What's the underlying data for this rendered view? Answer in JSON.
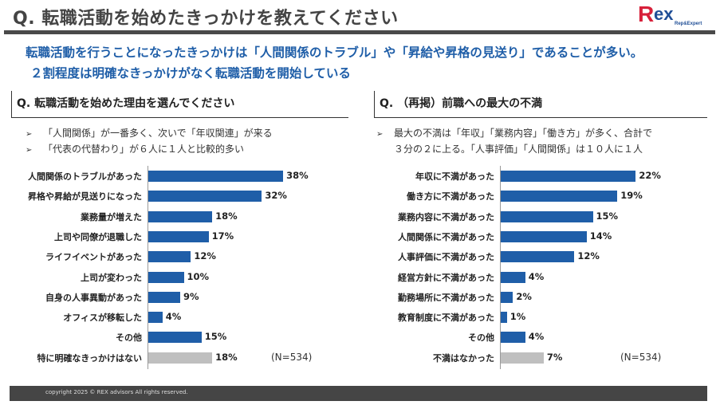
{
  "header": {
    "title": "Q. 転職活動を始めたきっかけを教えてください",
    "logo": "Rex Rep&Expert"
  },
  "lead": [
    "転職活動を行うことになったきっかけは「人間関係のトラブル」や「昇給や昇格の見送り」であることが多い。",
    "２割程度は明確なきっかけがなく転職活動を開始している"
  ],
  "left": {
    "heading": "Q. 転職活動を始めた理由を選んでください",
    "bullets": [
      "「人間関係」が一番多く、次いで「年収関連」が来る",
      "「代表の代替わり」が６人に１人と比較的多い"
    ],
    "bullet_icon": "arrowhead"
  },
  "right": {
    "heading": "Q. （再掲）前職への最大の不満",
    "bullets": [
      "最大の不満は「年収」「業務内容」「働き方」が多く、合計で",
      "３分の２に上る。「人事評価」「人間関係」は１０人に１人"
    ],
    "bullet_icon": "arrowhead"
  },
  "colors": {
    "bar": "#1f5ea8",
    "bar_none": "#bfbfbf",
    "lead": "#1f5ea8"
  },
  "chart_data": [
    {
      "type": "bar",
      "orientation": "horizontal",
      "note": "(N=534)",
      "unit": "%",
      "categories": [
        "人間関係のトラブルがあった",
        "昇格や昇給が見送りになった",
        "業務量が増えた",
        "上司や同僚が退職した",
        "ライフイベントがあった",
        "上司が変わった",
        "自身の人事異動があった",
        "オフィスが移転した",
        "その他",
        "特に明確なきっかけはない"
      ],
      "values": [
        38,
        32,
        18,
        17,
        12,
        10,
        9,
        4,
        15,
        18
      ],
      "labels": [
        "38%",
        "32%",
        "18%",
        "17%",
        "12%",
        "10%",
        "9%",
        "4%",
        "15%",
        "18%"
      ]
    },
    {
      "type": "bar",
      "orientation": "horizontal",
      "note": "(N=534)",
      "unit": "%",
      "categories": [
        "年収に不満があった",
        "働き方に不満があった",
        "業務内容に不満があった",
        "人間関係に不満があった",
        "人事評価に不満があった",
        "経営方針に不満があった",
        "勤務場所に不満があった",
        "教育制度に不満があった",
        "その他",
        "不満はなかった"
      ],
      "values": [
        22,
        19,
        15,
        14,
        12,
        4,
        2,
        1,
        4,
        7
      ],
      "labels": [
        "22%",
        "19%",
        "15%",
        "14%",
        "12%",
        "4%",
        "2%",
        "1%",
        "4%",
        "7%"
      ]
    }
  ],
  "footer": {
    "copyright": "copyright 2025 © REX advisors All rights reserved."
  }
}
